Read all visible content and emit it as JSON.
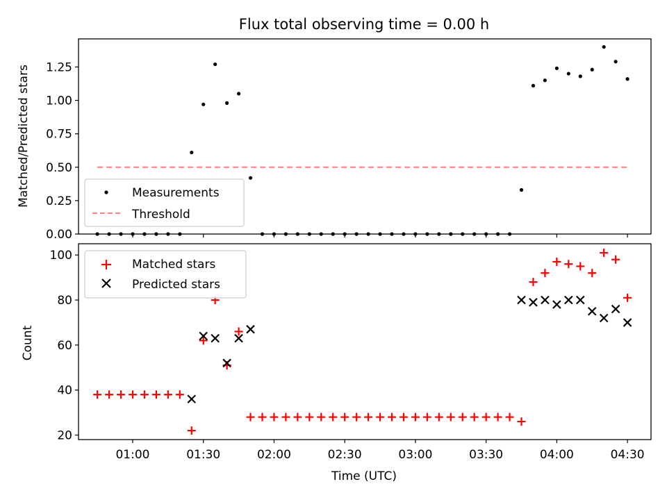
{
  "chart_data": [
    {
      "type": "scatter",
      "title": "Flux total observing time = 0.00 h",
      "xlabel": "",
      "ylabel": "Matched/Predicted stars",
      "ylim": [
        0,
        1.46
      ],
      "yticks": [
        0.0,
        0.25,
        0.5,
        0.75,
        1.0,
        1.25
      ],
      "ytick_labels": [
        "0.00",
        "0.25",
        "0.50",
        "0.75",
        "1.00",
        "1.25"
      ],
      "legend_position": "lower-left",
      "grid": false,
      "series": [
        {
          "name": "Measurements",
          "color": "#000000",
          "marker": "dot",
          "x": [
            "00:45",
            "00:50",
            "00:55",
            "01:00",
            "01:05",
            "01:10",
            "01:15",
            "01:20",
            "01:25",
            "01:30",
            "01:35",
            "01:40",
            "01:45",
            "01:50",
            "01:55",
            "02:00",
            "02:05",
            "02:10",
            "02:15",
            "02:20",
            "02:25",
            "02:30",
            "02:35",
            "02:40",
            "02:45",
            "02:50",
            "02:55",
            "03:00",
            "03:05",
            "03:10",
            "03:15",
            "03:20",
            "03:25",
            "03:30",
            "03:35",
            "03:40",
            "03:45",
            "03:50",
            "03:55",
            "04:00",
            "04:05",
            "04:10",
            "04:15",
            "04:20",
            "04:25",
            "04:30"
          ],
          "y": [
            0,
            0,
            0,
            0,
            0,
            0,
            0,
            0,
            0.61,
            0.97,
            1.27,
            0.98,
            1.05,
            0.42,
            0,
            0,
            0,
            0,
            0,
            0,
            0,
            0,
            0,
            0,
            0,
            0,
            0,
            0,
            0,
            0,
            0,
            0,
            0,
            0,
            0,
            0,
            0.33,
            1.11,
            1.15,
            1.24,
            1.2,
            1.18,
            1.23,
            1.4,
            1.29,
            1.16
          ]
        },
        {
          "name": "Threshold",
          "color": "#ff7f7f",
          "style": "dashed",
          "x": [
            "00:45",
            "04:30"
          ],
          "y": [
            0.5,
            0.5
          ]
        }
      ]
    },
    {
      "type": "scatter",
      "title": "",
      "xlabel": "Time (UTC)",
      "ylabel": "Count",
      "ylim": [
        18,
        105
      ],
      "yticks": [
        20,
        40,
        60,
        80,
        100
      ],
      "ytick_labels": [
        "20",
        "40",
        "60",
        "80",
        "100"
      ],
      "xtick_labels": [
        "01:00",
        "01:30",
        "02:00",
        "02:30",
        "03:00",
        "03:30",
        "04:00",
        "04:30"
      ],
      "legend_position": "upper-left",
      "grid": false,
      "series": [
        {
          "name": "Matched stars",
          "color": "#ff0000",
          "marker": "plus",
          "x": [
            "00:45",
            "00:50",
            "00:55",
            "01:00",
            "01:05",
            "01:10",
            "01:15",
            "01:20",
            "01:25",
            "01:30",
            "01:35",
            "01:40",
            "01:45",
            "01:50",
            "01:55",
            "02:00",
            "02:05",
            "02:10",
            "02:15",
            "02:20",
            "02:25",
            "02:30",
            "02:35",
            "02:40",
            "02:45",
            "02:50",
            "02:55",
            "03:00",
            "03:05",
            "03:10",
            "03:15",
            "03:20",
            "03:25",
            "03:30",
            "03:35",
            "03:40",
            "03:45",
            "03:50",
            "03:55",
            "04:00",
            "04:05",
            "04:10",
            "04:15",
            "04:20",
            "04:25",
            "04:30"
          ],
          "y": [
            38,
            38,
            38,
            38,
            38,
            38,
            38,
            38,
            22,
            62,
            80,
            51,
            66,
            28,
            28,
            28,
            28,
            28,
            28,
            28,
            28,
            28,
            28,
            28,
            28,
            28,
            28,
            28,
            28,
            28,
            28,
            28,
            28,
            28,
            28,
            28,
            26,
            88,
            92,
            97,
            96,
            95,
            92,
            101,
            98,
            81
          ]
        },
        {
          "name": "Predicted stars",
          "color": "#000000",
          "marker": "x",
          "x": [
            "01:25",
            "01:30",
            "01:35",
            "01:40",
            "01:45",
            "01:50",
            "03:45",
            "03:50",
            "03:55",
            "04:00",
            "04:05",
            "04:10",
            "04:15",
            "04:20",
            "04:25",
            "04:30"
          ],
          "y": [
            36,
            64,
            63,
            52,
            63,
            67,
            80,
            79,
            80,
            78,
            80,
            80,
            75,
            72,
            76,
            70
          ]
        }
      ]
    }
  ]
}
